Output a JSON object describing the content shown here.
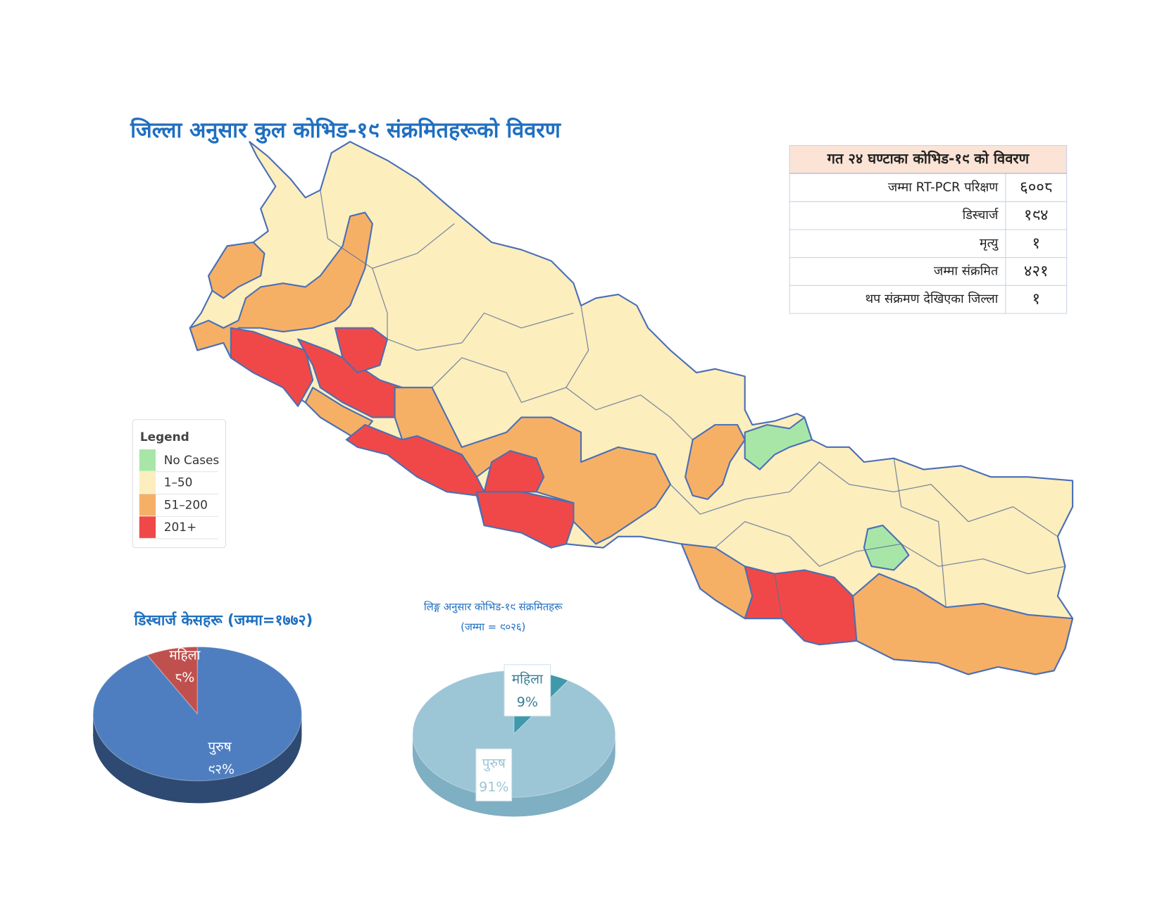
{
  "title": "जिल्ला अनुसार कुल कोभिड-१९ संक्रमितहरूको विवरण",
  "table": {
    "header": "गत २४ घण्टाका कोभिड-१९ को विवरण",
    "rows": [
      [
        "जम्मा RT-PCR परिक्षण",
        "६००८"
      ],
      [
        "डिस्चार्ज",
        "१९४"
      ],
      [
        "मृत्यु",
        "१"
      ],
      [
        "जम्मा संक्रमित",
        "४२१"
      ],
      [
        "थप संक्रमण देखिएका जिल्ला",
        "१"
      ]
    ]
  },
  "legend": {
    "title": "Legend",
    "items": [
      {
        "label": "No Cases",
        "color": "#a8e6a8"
      },
      {
        "label": "1–50",
        "color": "#fdeebd"
      },
      {
        "label": "51–200",
        "color": "#f6b066"
      },
      {
        "label": "201+",
        "color": "#f04848"
      }
    ]
  },
  "chart_data": [
    {
      "type": "pie",
      "title": "डिस्चार्ज केसहरू (जम्मा=१७७२)",
      "categories": [
        "महिला",
        "पुरुष"
      ],
      "values": [
        8,
        92
      ],
      "value_labels": [
        "८%",
        "९२%"
      ],
      "colors": [
        "#c0504d",
        "#4f7ec0"
      ]
    },
    {
      "type": "pie",
      "title": "लिङ्ग अनुसार कोभिड-१९ संक्रमितहरू",
      "subtitle": "(जम्मा = ९०२६)",
      "categories": [
        "महिला",
        "पुरुष"
      ],
      "values": [
        9,
        91
      ],
      "value_labels": [
        "9%",
        "91%"
      ],
      "colors": [
        "#3f98ab",
        "#9cc5d6"
      ]
    }
  ]
}
